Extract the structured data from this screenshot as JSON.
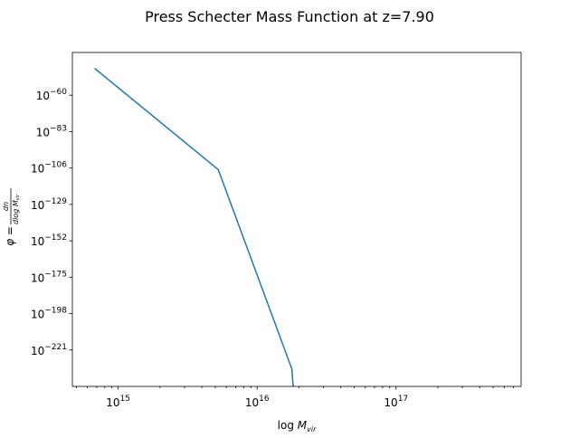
{
  "chart_data": {
    "type": "line",
    "title": "Press Schecter Mass Function at z=7.90",
    "xlabel": {
      "base": "log ",
      "italic": "M",
      "sub": "vir"
    },
    "ylabel": {
      "prefix": "φ = ",
      "numerator": "dn",
      "denominator": "dlog M",
      "denominator_sub": "vir"
    },
    "x_scale": "log",
    "y_scale": "log",
    "xlim_log10": [
      14.67,
      17.9
    ],
    "ylim_log10": [
      -244,
      -33
    ],
    "x_ticks": [
      {
        "exp": 15,
        "label_base": "10",
        "label_exp": "15"
      },
      {
        "exp": 16,
        "label_base": "10",
        "label_exp": "16"
      },
      {
        "exp": 17,
        "label_base": "10",
        "label_exp": "17"
      }
    ],
    "y_ticks": [
      {
        "exp": -60,
        "label_base": "10",
        "label_exp": "−60"
      },
      {
        "exp": -83,
        "label_base": "10",
        "label_exp": "−83"
      },
      {
        "exp": -106,
        "label_base": "10",
        "label_exp": "−106"
      },
      {
        "exp": -129,
        "label_base": "10",
        "label_exp": "−129"
      },
      {
        "exp": -152,
        "label_base": "10",
        "label_exp": "−152"
      },
      {
        "exp": -175,
        "label_base": "10",
        "label_exp": "−175"
      },
      {
        "exp": -198,
        "label_base": "10",
        "label_exp": "−198"
      },
      {
        "exp": -221,
        "label_base": "10",
        "label_exp": "−221"
      }
    ],
    "grid": false,
    "series": [
      {
        "color": "#1f77b4",
        "x_log10": [
          14.83,
          15.72,
          16.25,
          16.26
        ],
        "y_log10": [
          -43,
          -107,
          -233,
          -245
        ]
      }
    ]
  }
}
